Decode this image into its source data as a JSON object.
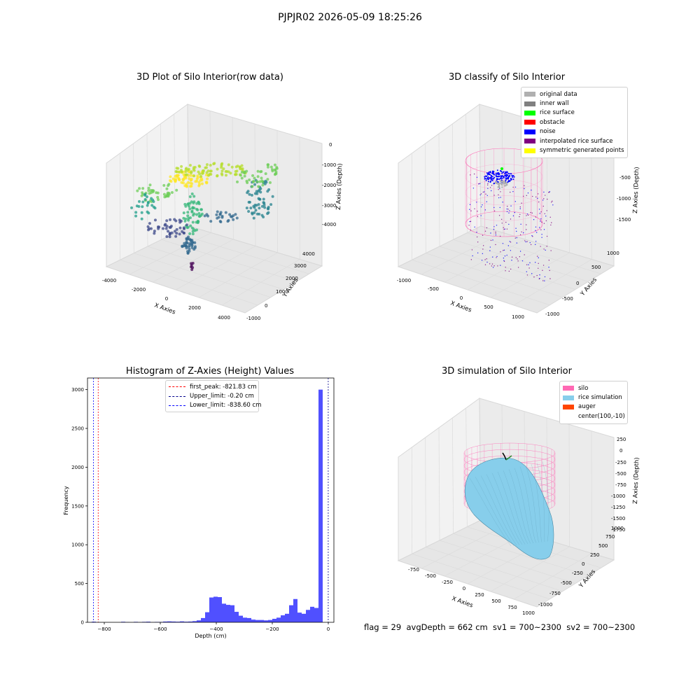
{
  "figure_title": "PJPJR02 2026-05-09 18:25:26",
  "footer": "flag = 29  avgDepth = 662 cm  sv1 = 700~2300  sv2 = 700~2300",
  "colors": {
    "pink": "#ff69b4",
    "blue": "#0000ff",
    "teal": "#87ceeb",
    "orange": "#ff4500",
    "histbar": "#5050ff"
  },
  "chart_data": [
    {
      "type": "scatter",
      "title": "3D Plot of Silo Interior(row data)",
      "xlabel": "X Axies",
      "ylabel": "Y Axies",
      "zlabel": "Z Axies (Depth)",
      "x_ticks": [
        "-4000",
        "-2000",
        "0",
        "2000",
        "4000"
      ],
      "y_ticks": [
        "-1000",
        "0",
        "1000",
        "2000",
        "3000",
        "4000"
      ],
      "z_ticks": [
        "0",
        "-1000",
        "-2000",
        "-3000",
        "-4000"
      ],
      "grid": true
    },
    {
      "type": "scatter",
      "title": "3D classify of Silo Interior",
      "xlabel": "X Axies",
      "ylabel": "Y Axies",
      "zlabel": "Z Axies (Depth)",
      "x_ticks": [
        "-1000",
        "-500",
        "0",
        "500",
        "1000"
      ],
      "y_ticks": [
        "-1000",
        "-500",
        "0",
        "500",
        "1000"
      ],
      "z_ticks": [
        "0",
        "-500",
        "-1000",
        "-1500"
      ],
      "legend": [
        {
          "label": "original data",
          "color": "#b0b0b0"
        },
        {
          "label": "inner wall",
          "color": "#808080"
        },
        {
          "label": "rice surface",
          "color": "#00ff00"
        },
        {
          "label": "obstacle",
          "color": "#ff0000"
        },
        {
          "label": "noise",
          "color": "#0000ff"
        },
        {
          "label": "interpolated rice surface",
          "color": "#800080"
        },
        {
          "label": "symmetric generated points",
          "color": "#ffff00"
        }
      ],
      "legend_position": "top-right",
      "grid": true
    },
    {
      "type": "bar",
      "title": "Histogram of Z-Axies (Height) Values",
      "xlabel": "Depth (cm)",
      "ylabel": "Frequency",
      "xlim": [
        -860,
        20
      ],
      "ylim": [
        0,
        3150
      ],
      "x_ticks": [
        -800,
        -600,
        -400,
        -200,
        0
      ],
      "y_ticks": [
        0,
        500,
        1000,
        1500,
        2000,
        2500,
        3000
      ],
      "bin_width": 15,
      "bins": [
        {
          "x": -845,
          "value": 8
        },
        {
          "x": -830,
          "value": 2
        },
        {
          "x": -815,
          "value": 0
        },
        {
          "x": -800,
          "value": 0
        },
        {
          "x": -785,
          "value": 0
        },
        {
          "x": -770,
          "value": 0
        },
        {
          "x": -755,
          "value": 0
        },
        {
          "x": -740,
          "value": 7
        },
        {
          "x": -725,
          "value": 3
        },
        {
          "x": -710,
          "value": 0
        },
        {
          "x": -695,
          "value": 6
        },
        {
          "x": -680,
          "value": 2
        },
        {
          "x": -665,
          "value": 6
        },
        {
          "x": -650,
          "value": 8
        },
        {
          "x": -635,
          "value": 2
        },
        {
          "x": -620,
          "value": 5
        },
        {
          "x": -605,
          "value": 5
        },
        {
          "x": -590,
          "value": 10
        },
        {
          "x": -575,
          "value": 12
        },
        {
          "x": -560,
          "value": 10
        },
        {
          "x": -545,
          "value": 8
        },
        {
          "x": -530,
          "value": 12
        },
        {
          "x": -515,
          "value": 8
        },
        {
          "x": -500,
          "value": 10
        },
        {
          "x": -485,
          "value": 15
        },
        {
          "x": -470,
          "value": 25
        },
        {
          "x": -455,
          "value": 55
        },
        {
          "x": -440,
          "value": 130
        },
        {
          "x": -425,
          "value": 320
        },
        {
          "x": -410,
          "value": 330
        },
        {
          "x": -395,
          "value": 325
        },
        {
          "x": -380,
          "value": 240
        },
        {
          "x": -365,
          "value": 225
        },
        {
          "x": -350,
          "value": 220
        },
        {
          "x": -335,
          "value": 135
        },
        {
          "x": -320,
          "value": 85
        },
        {
          "x": -305,
          "value": 60
        },
        {
          "x": -290,
          "value": 55
        },
        {
          "x": -275,
          "value": 35
        },
        {
          "x": -260,
          "value": 30
        },
        {
          "x": -245,
          "value": 30
        },
        {
          "x": -230,
          "value": 25
        },
        {
          "x": -215,
          "value": 30
        },
        {
          "x": -200,
          "value": 45
        },
        {
          "x": -185,
          "value": 60
        },
        {
          "x": -170,
          "value": 90
        },
        {
          "x": -155,
          "value": 110
        },
        {
          "x": -140,
          "value": 220
        },
        {
          "x": -125,
          "value": 300
        },
        {
          "x": -110,
          "value": 125
        },
        {
          "x": -95,
          "value": 110
        },
        {
          "x": -80,
          "value": 160
        },
        {
          "x": -65,
          "value": 200
        },
        {
          "x": -50,
          "value": 185
        },
        {
          "x": -35,
          "value": 3000
        },
        {
          "x": -20,
          "value": 0
        }
      ],
      "lines": [
        {
          "label": "first_peak: -821.83 cm",
          "x": -821.83,
          "color": "#ff0000"
        },
        {
          "label": "Upper_limit: -0.20 cm",
          "x": -0.2,
          "color": "#00008b"
        },
        {
          "label": "Lower_limit: -838.60 cm",
          "x": -838.6,
          "color": "#0000ff"
        }
      ],
      "legend_position": "top-center"
    },
    {
      "type": "surface",
      "title": "3D simulation of Silo Interior",
      "xlabel": "X Axies",
      "ylabel": "Y Axies",
      "zlabel": "Z Axies (Depth)",
      "x_ticks": [
        "-750",
        "-500",
        "-250",
        "0",
        "250",
        "500",
        "750",
        "1000"
      ],
      "y_ticks": [
        "-1000",
        "-750",
        "-500",
        "-250",
        "0",
        "250",
        "500",
        "750",
        "1000"
      ],
      "z_ticks": [
        "250",
        "0",
        "-250",
        "-500",
        "-750",
        "-1000",
        "-1250",
        "-1500",
        "-1750"
      ],
      "legend": [
        {
          "label": "silo",
          "color": "#ff69b4"
        },
        {
          "label": "rice simulation",
          "color": "#87ceeb"
        },
        {
          "label": "auger",
          "color": "#ff4500"
        },
        {
          "label": "center(100,-10)",
          "color": ""
        }
      ],
      "legend_position": "top-right",
      "grid": true
    }
  ]
}
